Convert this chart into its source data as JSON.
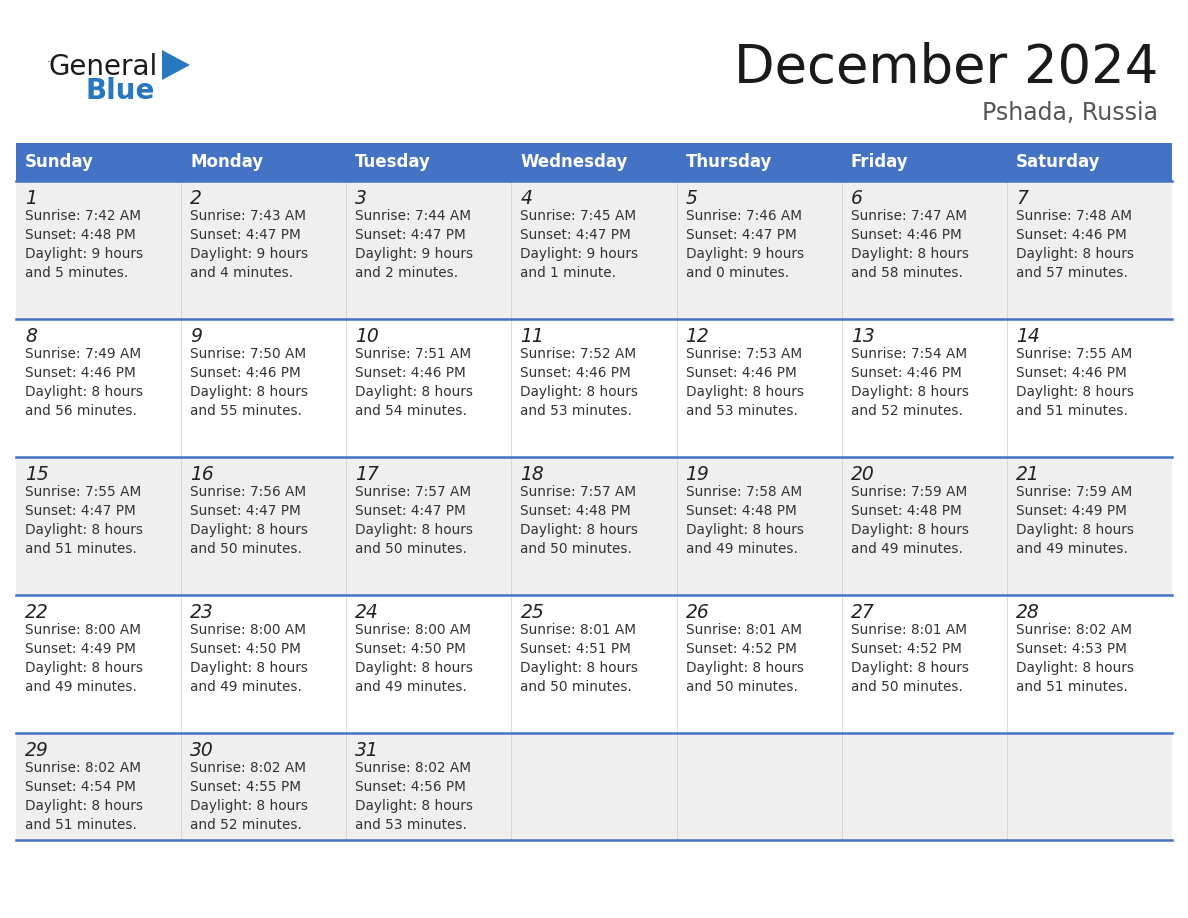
{
  "title": "December 2024",
  "subtitle": "Pshada, Russia",
  "days_of_week": [
    "Sunday",
    "Monday",
    "Tuesday",
    "Wednesday",
    "Thursday",
    "Friday",
    "Saturday"
  ],
  "header_bg": "#4472C4",
  "header_text_color": "#FFFFFF",
  "row_bg_even": "#EFEFEF",
  "row_bg_odd": "#FFFFFF",
  "cell_text_color": "#333333",
  "day_num_color": "#222222",
  "separator_color": "#4472C4",
  "calendar_data": [
    [
      {
        "day": 1,
        "sunrise": "7:42 AM",
        "sunset": "4:48 PM",
        "daylight_h": "9 hours",
        "daylight_m": "and 5 minutes."
      },
      {
        "day": 2,
        "sunrise": "7:43 AM",
        "sunset": "4:47 PM",
        "daylight_h": "9 hours",
        "daylight_m": "and 4 minutes."
      },
      {
        "day": 3,
        "sunrise": "7:44 AM",
        "sunset": "4:47 PM",
        "daylight_h": "9 hours",
        "daylight_m": "and 2 minutes."
      },
      {
        "day": 4,
        "sunrise": "7:45 AM",
        "sunset": "4:47 PM",
        "daylight_h": "9 hours",
        "daylight_m": "and 1 minute."
      },
      {
        "day": 5,
        "sunrise": "7:46 AM",
        "sunset": "4:47 PM",
        "daylight_h": "9 hours",
        "daylight_m": "and 0 minutes."
      },
      {
        "day": 6,
        "sunrise": "7:47 AM",
        "sunset": "4:46 PM",
        "daylight_h": "8 hours",
        "daylight_m": "and 58 minutes."
      },
      {
        "day": 7,
        "sunrise": "7:48 AM",
        "sunset": "4:46 PM",
        "daylight_h": "8 hours",
        "daylight_m": "and 57 minutes."
      }
    ],
    [
      {
        "day": 8,
        "sunrise": "7:49 AM",
        "sunset": "4:46 PM",
        "daylight_h": "8 hours",
        "daylight_m": "and 56 minutes."
      },
      {
        "day": 9,
        "sunrise": "7:50 AM",
        "sunset": "4:46 PM",
        "daylight_h": "8 hours",
        "daylight_m": "and 55 minutes."
      },
      {
        "day": 10,
        "sunrise": "7:51 AM",
        "sunset": "4:46 PM",
        "daylight_h": "8 hours",
        "daylight_m": "and 54 minutes."
      },
      {
        "day": 11,
        "sunrise": "7:52 AM",
        "sunset": "4:46 PM",
        "daylight_h": "8 hours",
        "daylight_m": "and 53 minutes."
      },
      {
        "day": 12,
        "sunrise": "7:53 AM",
        "sunset": "4:46 PM",
        "daylight_h": "8 hours",
        "daylight_m": "and 53 minutes."
      },
      {
        "day": 13,
        "sunrise": "7:54 AM",
        "sunset": "4:46 PM",
        "daylight_h": "8 hours",
        "daylight_m": "and 52 minutes."
      },
      {
        "day": 14,
        "sunrise": "7:55 AM",
        "sunset": "4:46 PM",
        "daylight_h": "8 hours",
        "daylight_m": "and 51 minutes."
      }
    ],
    [
      {
        "day": 15,
        "sunrise": "7:55 AM",
        "sunset": "4:47 PM",
        "daylight_h": "8 hours",
        "daylight_m": "and 51 minutes."
      },
      {
        "day": 16,
        "sunrise": "7:56 AM",
        "sunset": "4:47 PM",
        "daylight_h": "8 hours",
        "daylight_m": "and 50 minutes."
      },
      {
        "day": 17,
        "sunrise": "7:57 AM",
        "sunset": "4:47 PM",
        "daylight_h": "8 hours",
        "daylight_m": "and 50 minutes."
      },
      {
        "day": 18,
        "sunrise": "7:57 AM",
        "sunset": "4:48 PM",
        "daylight_h": "8 hours",
        "daylight_m": "and 50 minutes."
      },
      {
        "day": 19,
        "sunrise": "7:58 AM",
        "sunset": "4:48 PM",
        "daylight_h": "8 hours",
        "daylight_m": "and 49 minutes."
      },
      {
        "day": 20,
        "sunrise": "7:59 AM",
        "sunset": "4:48 PM",
        "daylight_h": "8 hours",
        "daylight_m": "and 49 minutes."
      },
      {
        "day": 21,
        "sunrise": "7:59 AM",
        "sunset": "4:49 PM",
        "daylight_h": "8 hours",
        "daylight_m": "and 49 minutes."
      }
    ],
    [
      {
        "day": 22,
        "sunrise": "8:00 AM",
        "sunset": "4:49 PM",
        "daylight_h": "8 hours",
        "daylight_m": "and 49 minutes."
      },
      {
        "day": 23,
        "sunrise": "8:00 AM",
        "sunset": "4:50 PM",
        "daylight_h": "8 hours",
        "daylight_m": "and 49 minutes."
      },
      {
        "day": 24,
        "sunrise": "8:00 AM",
        "sunset": "4:50 PM",
        "daylight_h": "8 hours",
        "daylight_m": "and 49 minutes."
      },
      {
        "day": 25,
        "sunrise": "8:01 AM",
        "sunset": "4:51 PM",
        "daylight_h": "8 hours",
        "daylight_m": "and 50 minutes."
      },
      {
        "day": 26,
        "sunrise": "8:01 AM",
        "sunset": "4:52 PM",
        "daylight_h": "8 hours",
        "daylight_m": "and 50 minutes."
      },
      {
        "day": 27,
        "sunrise": "8:01 AM",
        "sunset": "4:52 PM",
        "daylight_h": "8 hours",
        "daylight_m": "and 50 minutes."
      },
      {
        "day": 28,
        "sunrise": "8:02 AM",
        "sunset": "4:53 PM",
        "daylight_h": "8 hours",
        "daylight_m": "and 51 minutes."
      }
    ],
    [
      {
        "day": 29,
        "sunrise": "8:02 AM",
        "sunset": "4:54 PM",
        "daylight_h": "8 hours",
        "daylight_m": "and 51 minutes."
      },
      {
        "day": 30,
        "sunrise": "8:02 AM",
        "sunset": "4:55 PM",
        "daylight_h": "8 hours",
        "daylight_m": "and 52 minutes."
      },
      {
        "day": 31,
        "sunrise": "8:02 AM",
        "sunset": "4:56 PM",
        "daylight_h": "8 hours",
        "daylight_m": "and 53 minutes."
      },
      null,
      null,
      null,
      null
    ]
  ],
  "logo_general_color": "#1a1a1a",
  "logo_blue_color": "#2878C0",
  "logo_triangle_color": "#2878C0",
  "title_color": "#1a1a1a",
  "subtitle_color": "#555555",
  "fig_width": 11.88,
  "fig_height": 9.18
}
